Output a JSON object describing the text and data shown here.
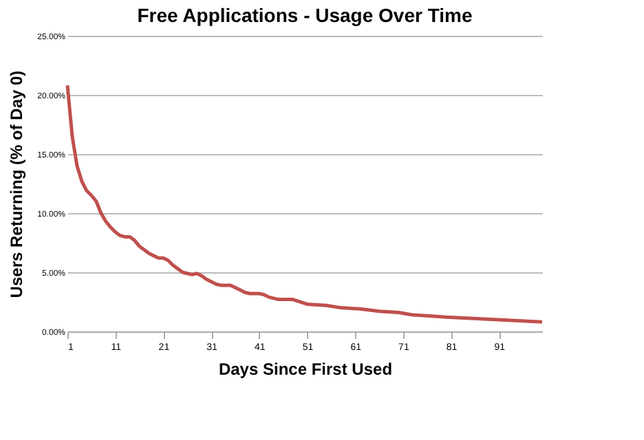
{
  "chart_data": {
    "type": "line",
    "title": "Free Applications - Usage Over Time",
    "xlabel": "Days Since First Used",
    "ylabel": "Users Returning (% of Day 0)",
    "x": [
      1,
      2,
      3,
      4,
      5,
      6,
      7,
      8,
      9,
      10,
      11,
      12,
      13,
      14,
      15,
      16,
      17,
      18,
      19,
      20,
      21,
      22,
      23,
      24,
      25,
      26,
      27,
      28,
      29,
      30,
      31,
      32,
      33,
      34,
      35,
      36,
      37,
      38,
      39,
      40,
      41,
      42,
      43,
      44,
      45,
      48,
      51,
      55,
      58,
      62,
      66,
      70,
      73,
      77,
      80,
      85,
      90,
      95,
      100
    ],
    "series": [
      {
        "color": "#c0504d",
        "values": [
          20.8,
          16.5,
          14.0,
          12.7,
          11.9,
          11.5,
          11.0,
          10.0,
          9.3,
          8.8,
          8.4,
          8.1,
          8.0,
          8.0,
          7.7,
          7.2,
          6.9,
          6.6,
          6.4,
          6.2,
          6.2,
          6.0,
          5.6,
          5.3,
          5.0,
          4.9,
          4.8,
          4.9,
          4.7,
          4.4,
          4.2,
          4.0,
          3.9,
          3.9,
          3.9,
          3.7,
          3.5,
          3.3,
          3.2,
          3.2,
          3.2,
          3.1,
          2.9,
          2.8,
          2.7,
          2.7,
          2.3,
          2.2,
          2.0,
          1.9,
          1.7,
          1.6,
          1.4,
          1.3,
          1.2,
          1.1,
          1.0,
          0.9,
          0.8
        ]
      }
    ],
    "xlim": [
      1,
      100
    ],
    "xticks": [
      1,
      11,
      21,
      31,
      41,
      51,
      61,
      71,
      81,
      91
    ],
    "ylim": [
      0,
      25
    ],
    "yticks": [
      {
        "value": 0,
        "label": "0.00%"
      },
      {
        "value": 5,
        "label": "5.00%"
      },
      {
        "value": 10,
        "label": "10.00%"
      },
      {
        "value": 15,
        "label": "15.00%"
      },
      {
        "value": 20,
        "label": "20.00%"
      },
      {
        "value": 25,
        "label": "25.00%"
      }
    ],
    "grid": "y",
    "legend": false,
    "marker": "none",
    "line_style": "solid"
  }
}
